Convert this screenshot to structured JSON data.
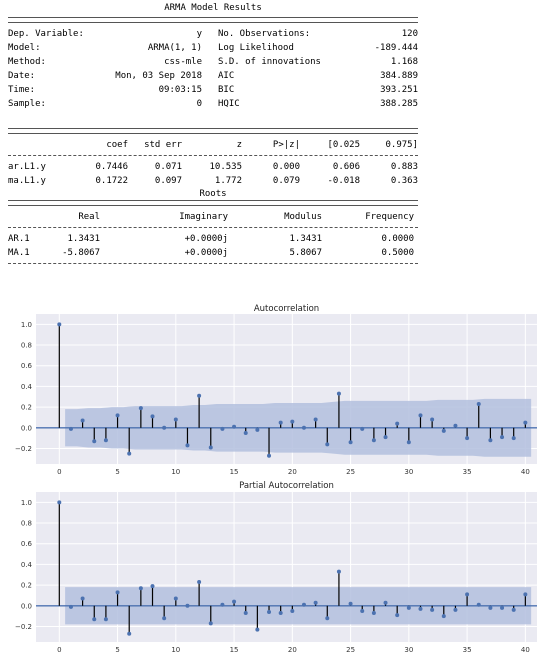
{
  "summary": {
    "title": "ARMA Model Results",
    "info_rows": [
      [
        "Dep. Variable:",
        "y",
        "No. Observations:",
        "120"
      ],
      [
        "Model:",
        "ARMA(1, 1)",
        "Log Likelihood",
        "-189.444"
      ],
      [
        "Method:",
        "css-mle",
        "S.D. of innovations",
        "1.168"
      ],
      [
        "Date:",
        "Mon, 03 Sep 2018",
        "AIC",
        "384.889"
      ],
      [
        "Time:",
        "09:03:15",
        "BIC",
        "393.251"
      ],
      [
        "Sample:",
        "0",
        "HQIC",
        "388.285"
      ]
    ],
    "coef_header": [
      "",
      "coef",
      "std err",
      "z",
      "P>|z|",
      "[0.025",
      "0.975]"
    ],
    "coef_rows": [
      [
        "ar.L1.y",
        "0.7446",
        "0.071",
        "10.535",
        "0.000",
        "0.606",
        "0.883"
      ],
      [
        "ma.L1.y",
        "0.1722",
        "0.097",
        "1.772",
        "0.079",
        "-0.018",
        "0.363"
      ]
    ],
    "roots_title": "Roots",
    "roots_header": [
      "",
      "Real",
      "Imaginary",
      "Modulus",
      "Frequency"
    ],
    "roots_rows": [
      [
        "AR.1",
        "1.3431",
        "+0.0000j",
        "1.3431",
        "0.0000"
      ],
      [
        "MA.1",
        "-5.8067",
        "+0.0000j",
        "5.8067",
        "0.5000"
      ]
    ]
  },
  "colors": {
    "panel_bg": "#eaeaf2",
    "grid": "#ffffff",
    "band": "#b3c0de",
    "marker": "#4c72b0",
    "zero_line": "#4c72b0",
    "stem": "#000000"
  },
  "chart_data": [
    {
      "type": "stem",
      "title": "Autocorrelation",
      "xlim": [
        -2,
        41
      ],
      "ylim": [
        -0.35,
        1.1
      ],
      "xticks": [
        0,
        5,
        10,
        15,
        20,
        25,
        30,
        35,
        40
      ],
      "yticks": [
        -0.2,
        0.0,
        0.2,
        0.4,
        0.6,
        0.8,
        1.0
      ],
      "ytick_labels": [
        "−0.2",
        "0.0",
        "0.2",
        "0.4",
        "0.6",
        "0.8",
        "1.0"
      ],
      "x": [
        0,
        1,
        2,
        3,
        4,
        5,
        6,
        7,
        8,
        9,
        10,
        11,
        12,
        13,
        14,
        15,
        16,
        17,
        18,
        19,
        20,
        21,
        22,
        23,
        24,
        25,
        26,
        27,
        28,
        29,
        30,
        31,
        32,
        33,
        34,
        35,
        36,
        37,
        38,
        39,
        40
      ],
      "values": [
        1.0,
        -0.01,
        0.07,
        -0.13,
        -0.12,
        0.12,
        -0.25,
        0.19,
        0.11,
        0.0,
        0.08,
        -0.17,
        0.31,
        -0.19,
        -0.01,
        0.01,
        -0.05,
        -0.02,
        -0.27,
        0.05,
        0.06,
        0.0,
        0.08,
        -0.16,
        0.33,
        -0.14,
        -0.01,
        -0.12,
        -0.09,
        0.04,
        -0.14,
        0.12,
        0.08,
        -0.03,
        0.02,
        -0.1,
        0.23,
        -0.12,
        -0.09,
        -0.1,
        0.05
      ],
      "band_upper": [
        0.0,
        0.18,
        0.18,
        0.19,
        0.19,
        0.2,
        0.2,
        0.21,
        0.21,
        0.21,
        0.21,
        0.21,
        0.22,
        0.22,
        0.23,
        0.23,
        0.23,
        0.23,
        0.23,
        0.24,
        0.24,
        0.24,
        0.24,
        0.24,
        0.25,
        0.26,
        0.26,
        0.26,
        0.26,
        0.26,
        0.26,
        0.26,
        0.26,
        0.27,
        0.27,
        0.27,
        0.27,
        0.28,
        0.28,
        0.28,
        0.28
      ]
    },
    {
      "type": "stem",
      "title": "Partial Autocorrelation",
      "xlim": [
        -2,
        41
      ],
      "ylim": [
        -0.35,
        1.1
      ],
      "xticks": [
        0,
        5,
        10,
        15,
        20,
        25,
        30,
        35,
        40
      ],
      "yticks": [
        -0.2,
        0.0,
        0.2,
        0.4,
        0.6,
        0.8,
        1.0
      ],
      "ytick_labels": [
        "−0.2",
        "0.0",
        "0.2",
        "0.4",
        "0.6",
        "0.8",
        "1.0"
      ],
      "x": [
        0,
        1,
        2,
        3,
        4,
        5,
        6,
        7,
        8,
        9,
        10,
        11,
        12,
        13,
        14,
        15,
        16,
        17,
        18,
        19,
        20,
        21,
        22,
        23,
        24,
        25,
        26,
        27,
        28,
        29,
        30,
        31,
        32,
        33,
        34,
        35,
        36,
        37,
        38,
        39,
        40
      ],
      "values": [
        1.0,
        -0.01,
        0.07,
        -0.13,
        -0.13,
        0.13,
        -0.27,
        0.17,
        0.19,
        -0.12,
        0.07,
        0.0,
        0.23,
        -0.17,
        0.01,
        0.04,
        -0.07,
        -0.23,
        -0.06,
        -0.07,
        -0.05,
        0.01,
        0.03,
        -0.12,
        0.33,
        0.02,
        -0.05,
        -0.07,
        0.03,
        -0.09,
        -0.02,
        -0.03,
        -0.04,
        -0.1,
        -0.04,
        0.11,
        0.01,
        -0.02,
        -0.02,
        -0.04,
        0.11
      ],
      "band_upper": [
        0.0,
        0.18,
        0.18,
        0.18,
        0.18,
        0.18,
        0.18,
        0.18,
        0.18,
        0.18,
        0.18,
        0.18,
        0.18,
        0.18,
        0.18,
        0.18,
        0.18,
        0.18,
        0.18,
        0.18,
        0.18,
        0.18,
        0.18,
        0.18,
        0.18,
        0.18,
        0.18,
        0.18,
        0.18,
        0.18,
        0.18,
        0.18,
        0.18,
        0.18,
        0.18,
        0.18,
        0.18,
        0.18,
        0.18,
        0.18,
        0.18
      ]
    }
  ]
}
